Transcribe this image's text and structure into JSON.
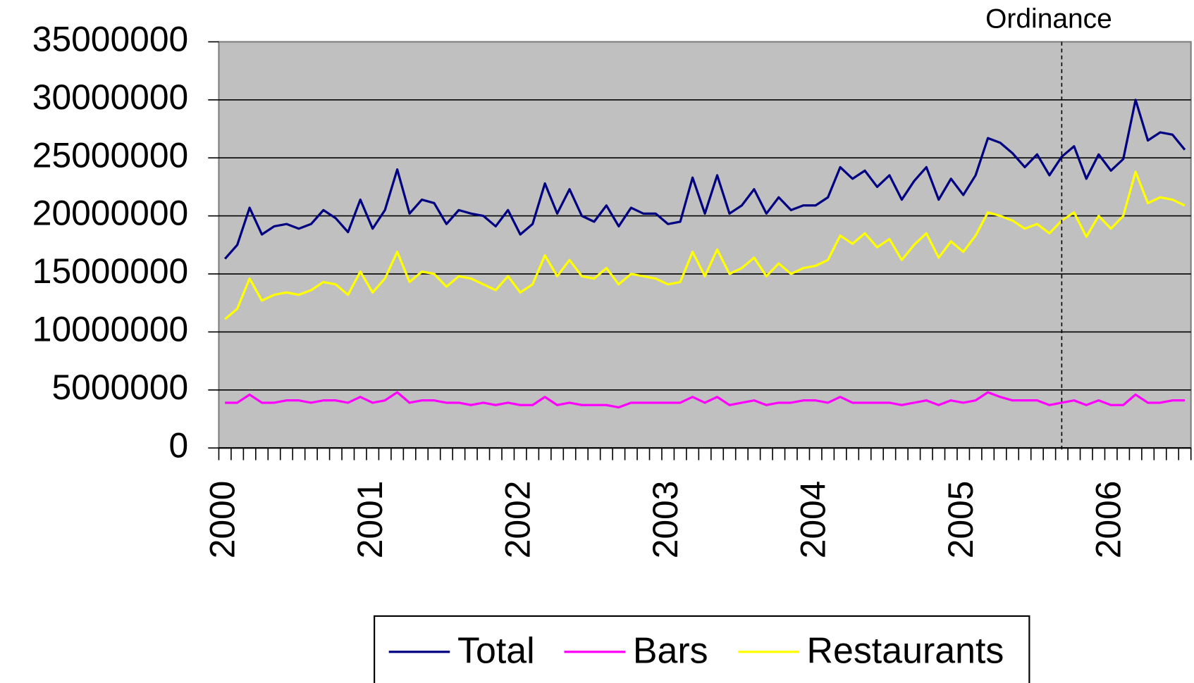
{
  "chart_data": {
    "type": "line",
    "categories": [
      "2000",
      null,
      null,
      null,
      null,
      null,
      null,
      null,
      null,
      null,
      null,
      null,
      "2001",
      null,
      null,
      null,
      null,
      null,
      null,
      null,
      null,
      null,
      null,
      null,
      "2002",
      null,
      null,
      null,
      null,
      null,
      null,
      null,
      null,
      null,
      null,
      null,
      "2003",
      null,
      null,
      null,
      null,
      null,
      null,
      null,
      null,
      null,
      null,
      null,
      "2004",
      null,
      null,
      null,
      null,
      null,
      null,
      null,
      null,
      null,
      null,
      null,
      "2005",
      null,
      null,
      null,
      null,
      null,
      null,
      null,
      null,
      null,
      null,
      null,
      "2006",
      null,
      null,
      null,
      null,
      null,
      null
    ],
    "series": [
      {
        "name": "Total",
        "color": "#000080",
        "values": [
          16300000,
          17500000,
          20700000,
          18400000,
          19100000,
          19300000,
          18900000,
          19300000,
          20500000,
          19800000,
          18600000,
          21400000,
          18900000,
          20500000,
          24000000,
          20200000,
          21400000,
          21100000,
          19300000,
          20500000,
          20200000,
          20000000,
          19100000,
          20500000,
          18400000,
          19300000,
          22800000,
          20200000,
          22300000,
          20000000,
          19500000,
          20900000,
          19100000,
          20700000,
          20200000,
          20200000,
          19300000,
          19500000,
          23300000,
          20200000,
          23500000,
          20200000,
          20900000,
          22300000,
          20200000,
          21600000,
          20500000,
          20900000,
          20900000,
          21600000,
          24200000,
          23200000,
          23900000,
          22500000,
          23500000,
          21400000,
          23000000,
          24200000,
          21400000,
          23200000,
          21800000,
          23500000,
          26700000,
          26300000,
          25400000,
          24200000,
          25300000,
          23500000,
          25100000,
          26000000,
          23200000,
          25300000,
          23900000,
          24900000,
          30000000,
          26500000,
          27200000,
          27000000,
          25700000
        ]
      },
      {
        "name": "Bars",
        "color": "#ff00ff",
        "values": [
          3900000,
          3900000,
          4600000,
          3900000,
          3900000,
          4100000,
          4100000,
          3900000,
          4100000,
          4100000,
          3900000,
          4400000,
          3900000,
          4100000,
          4800000,
          3900000,
          4100000,
          4100000,
          3900000,
          3900000,
          3700000,
          3900000,
          3700000,
          3900000,
          3700000,
          3700000,
          4400000,
          3700000,
          3900000,
          3700000,
          3700000,
          3700000,
          3500000,
          3900000,
          3900000,
          3900000,
          3900000,
          3900000,
          4400000,
          3900000,
          4400000,
          3700000,
          3900000,
          4100000,
          3700000,
          3900000,
          3900000,
          4100000,
          4100000,
          3900000,
          4400000,
          3900000,
          3900000,
          3900000,
          3900000,
          3700000,
          3900000,
          4100000,
          3700000,
          4100000,
          3900000,
          4100000,
          4800000,
          4400000,
          4100000,
          4100000,
          4100000,
          3700000,
          3900000,
          4100000,
          3700000,
          4100000,
          3700000,
          3700000,
          4600000,
          3900000,
          3900000,
          4100000,
          4100000
        ]
      },
      {
        "name": "Restaurants",
        "color": "#ffff00",
        "values": [
          11100000,
          12000000,
          14600000,
          12700000,
          13200000,
          13400000,
          13200000,
          13600000,
          14300000,
          14100000,
          13200000,
          15200000,
          13400000,
          14600000,
          16900000,
          14300000,
          15200000,
          15000000,
          13900000,
          14800000,
          14600000,
          14100000,
          13600000,
          14800000,
          13400000,
          14100000,
          16600000,
          14800000,
          16200000,
          14800000,
          14600000,
          15500000,
          14100000,
          15000000,
          14800000,
          14600000,
          14100000,
          14300000,
          16900000,
          14800000,
          17100000,
          15000000,
          15500000,
          16400000,
          14800000,
          15900000,
          15000000,
          15500000,
          15700000,
          16200000,
          18300000,
          17600000,
          18500000,
          17300000,
          18000000,
          16200000,
          17500000,
          18500000,
          16400000,
          17800000,
          16900000,
          18300000,
          20300000,
          20000000,
          19600000,
          18900000,
          19300000,
          18500000,
          19600000,
          20300000,
          18200000,
          20000000,
          18900000,
          20000000,
          23800000,
          21100000,
          21600000,
          21400000,
          20900000
        ]
      }
    ],
    "ylim": [
      0,
      35000000
    ],
    "yticks": [
      0,
      5000000,
      10000000,
      15000000,
      20000000,
      25000000,
      30000000,
      35000000
    ],
    "grid": true,
    "legend": "bottom",
    "annotation": {
      "label": "Ordinance",
      "index": 68
    }
  }
}
